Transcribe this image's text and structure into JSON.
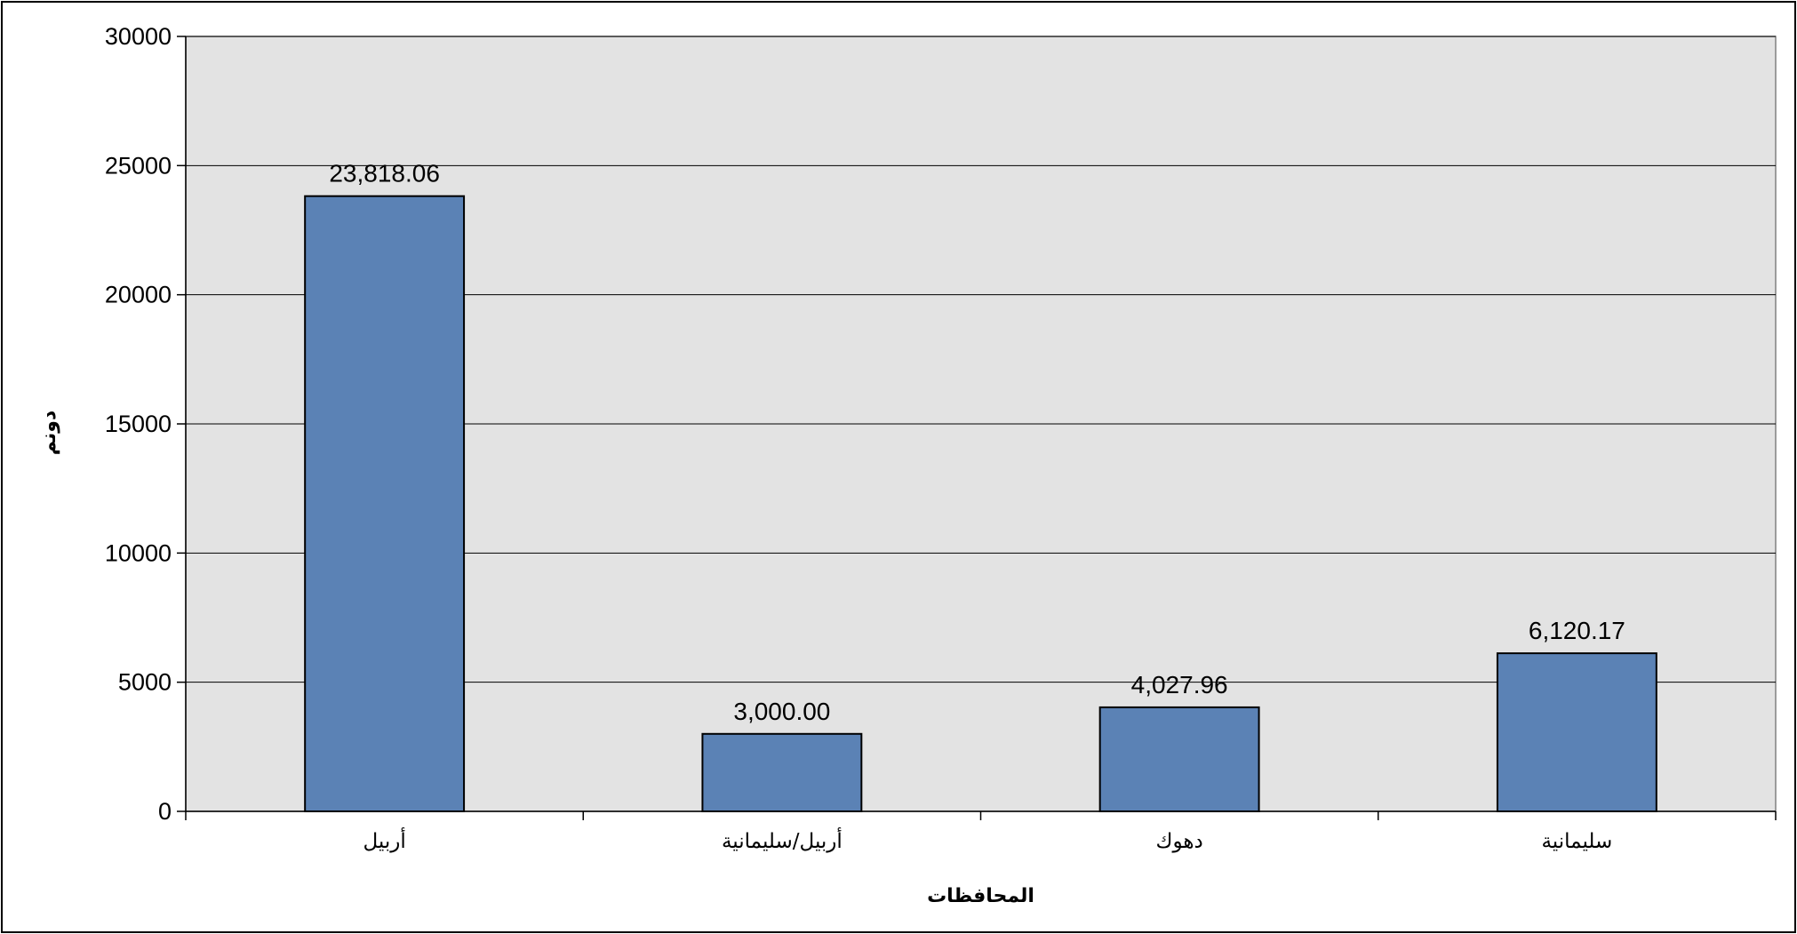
{
  "chart_data": {
    "type": "bar",
    "title": "",
    "xlabel": "المحافظات",
    "ylabel": "دونم",
    "categories": [
      "أربيل",
      "أربيل/سليمانية",
      "دهوك",
      "سليمانية"
    ],
    "values": [
      23818.06,
      3000.0,
      4027.96,
      6120.17
    ],
    "data_labels": [
      "23,818.06",
      "3,000.00",
      "4,027.96",
      "6,120.17"
    ],
    "ylim": [
      0,
      30000
    ],
    "yticks": [
      0,
      5000,
      10000,
      15000,
      20000,
      25000,
      30000
    ],
    "ytick_labels": [
      "0",
      "5000",
      "10000",
      "15000",
      "20000",
      "25000",
      "30000"
    ],
    "grid": true,
    "legend": "none",
    "colors": {
      "bar": "#5b82b5",
      "plot_background": "#e3e3e3",
      "gridline": "#000000"
    }
  }
}
